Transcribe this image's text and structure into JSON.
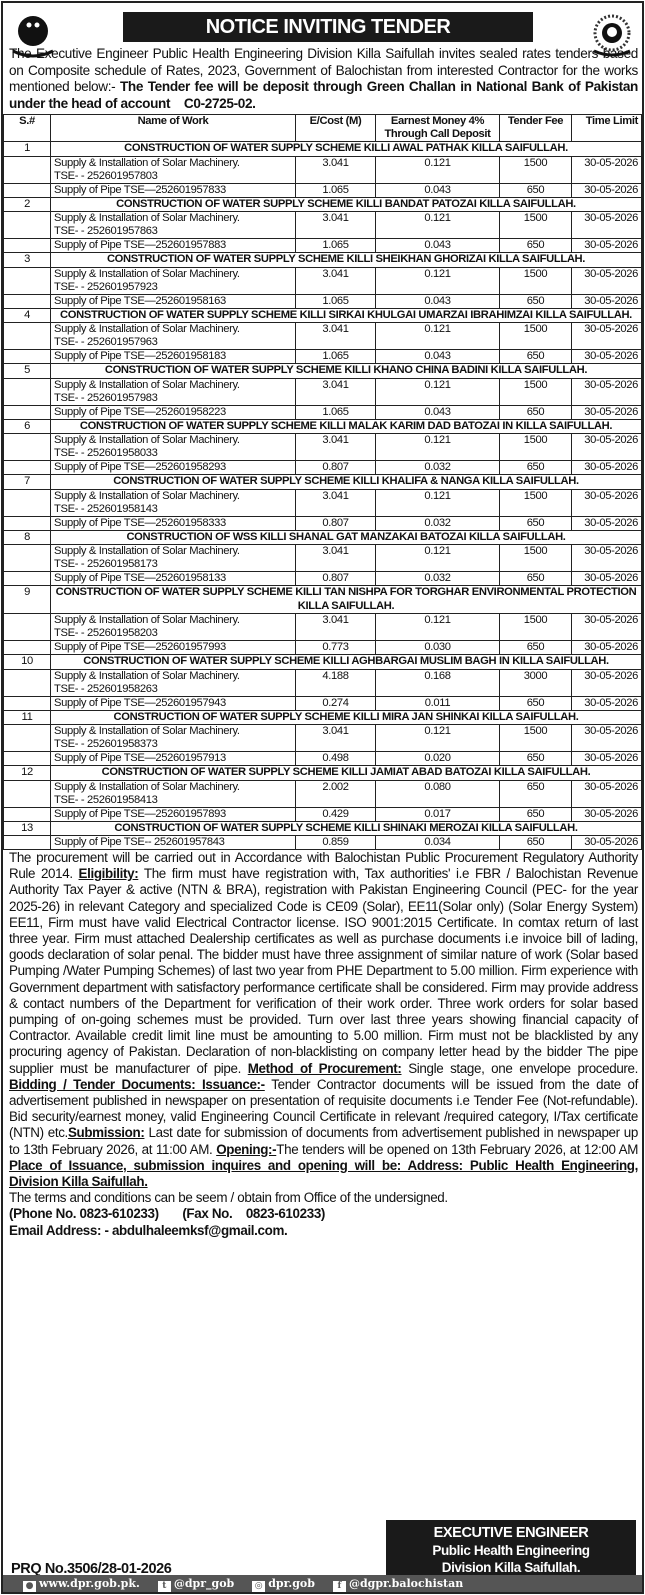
{
  "title": "NOTICE INVITING TENDER",
  "intro": [
    {
      "text": "The Executive Engineer Public Health Engineering Division Killa Saifullah invites sealed rates tenders based on Composite schedule of Rates, 2023, Government of Balochistan from interested Contractor for the works mentioned below:- ",
      "style": "n"
    },
    {
      "text": "The Tender fee will be deposit through Green Challan in National Bank of Pakistan under the head of account    C0-2725-02.",
      "style": "b"
    }
  ],
  "table": {
    "headers": [
      "S.#",
      "Name of Work",
      "E/Cost (M)",
      "Earnest Money 4% Through Call Deposit",
      "Tender Fee",
      "Time Limit"
    ],
    "projects": [
      {
        "sn": "1",
        "title": "CONSTRUCTION OF WATER SUPPLY SCHEME KILLI AWAL PATHAK KILLA SAIFULLAH.",
        "items": [
          {
            "name": "Supply & Installation of Solar Machinery.",
            "tse": "TSE- - 252601957803",
            "cost": "3.041",
            "em": "0.121",
            "fee": "1500",
            "time": "30-05-2026"
          },
          {
            "name": "Supply of Pipe TSE—252601957833",
            "cost": "1.065",
            "em": "0.043",
            "fee": "650",
            "time": "30-05-2026"
          }
        ]
      },
      {
        "sn": "2",
        "title": "CONSTRUCTION OF WATER SUPPLY SCHEME KILLI BANDAT PATOZAI KILLA SAIFULLAH.",
        "items": [
          {
            "name": "Supply & Installation of Solar Machinery.",
            "tse": "TSE- - 252601957863",
            "cost": "3.041",
            "em": "0.121",
            "fee": "1500",
            "time": "30-05-2026"
          },
          {
            "name": "Supply of Pipe TSE—252601957883",
            "cost": "1.065",
            "em": "0.043",
            "fee": "650",
            "time": "30-05-2026"
          }
        ]
      },
      {
        "sn": "3",
        "title": "CONSTRUCTION OF WATER SUPPLY SCHEME KILLI SHEIKHAN GHORIZAI KILLA SAIFULLAH.",
        "items": [
          {
            "name": "Supply & Installation of Solar Machinery.",
            "tse": "TSE- - 252601957923",
            "cost": "3.041",
            "em": "0.121",
            "fee": "1500",
            "time": "30-05-2026"
          },
          {
            "name": "Supply of Pipe TSE—252601958163",
            "cost": "1.065",
            "em": "0.043",
            "fee": "650",
            "time": "30-05-2026"
          }
        ]
      },
      {
        "sn": "4",
        "title": "CONSTRUCTION OF WATER SUPPLY SCHEME KILLI SIRKAI KHULGAI UMARZAI IBRAHIMZAI KILLA SAIFULLAH.",
        "items": [
          {
            "name": "Supply & Installation of Solar Machinery.",
            "tse": "TSE- - 252601957963",
            "cost": "3.041",
            "em": "0.121",
            "fee": "1500",
            "time": "30-05-2026"
          },
          {
            "name": "Supply of Pipe TSE—252601958183",
            "cost": "1.065",
            "em": "0.043",
            "fee": "650",
            "time": "30-05-2026"
          }
        ]
      },
      {
        "sn": "5",
        "title": "CONSTRUCTION OF WATER SUPPLY SCHEME KILLI KHANO CHINA BADINI KILLA SAIFULLAH.",
        "items": [
          {
            "name": "Supply & Installation of Solar Machinery.",
            "tse": "TSE- - 252601957983",
            "cost": "3.041",
            "em": "0.121",
            "fee": "1500",
            "time": "30-05-2026"
          },
          {
            "name": "Supply of Pipe TSE—252601958223",
            "cost": "1.065",
            "em": "0.043",
            "fee": "650",
            "time": "30-05-2026"
          }
        ]
      },
      {
        "sn": "6",
        "title": "CONSTRUCTION OF WATER SUPPLY SCHEME KILLI MALAK KARIM DAD BATOZAI IN KILLA SAIFULLAH.",
        "items": [
          {
            "name": "Supply & Installation of Solar Machinery.",
            "tse": "TSE- - 252601958033",
            "cost": "3.041",
            "em": "0.121",
            "fee": "1500",
            "time": "30-05-2026"
          },
          {
            "name": "Supply of Pipe TSE—252601958293",
            "cost": "0.807",
            "em": "0.032",
            "fee": "650",
            "time": "30-05-2026"
          }
        ]
      },
      {
        "sn": "7",
        "title": "CONSTRUCTION OF WATER SUPPLY SCHEME KILLI KHALIFA & NANGA KILLA SAIFULLAH.",
        "items": [
          {
            "name": "Supply & Installation of Solar Machinery.",
            "tse": "TSE- - 252601958143",
            "cost": "3.041",
            "em": "0.121",
            "fee": "1500",
            "time": "30-05-2026"
          },
          {
            "name": "Supply of Pipe TSE—252601958333",
            "cost": "0.807",
            "em": "0.032",
            "fee": "650",
            "time": "30-05-2026"
          }
        ]
      },
      {
        "sn": "8",
        "title": "CONSTRUCTION OF WSS KILLI SHANAL GAT MANZAKAI BATOZAI KILLA SAIFULLAH.",
        "items": [
          {
            "name": "Supply & Installation of Solar Machinery.",
            "tse": "TSE- - 252601958173",
            "cost": "3.041",
            "em": "0.121",
            "fee": "1500",
            "time": "30-05-2026"
          },
          {
            "name": "Supply of Pipe TSE—252601958133",
            "cost": "0.807",
            "em": "0.032",
            "fee": "650",
            "time": "30-05-2026"
          }
        ]
      },
      {
        "sn": "9",
        "title": "CONSTRUCTION OF WATER SUPPLY SCHEME KILLI TAN NISHPA FOR TORGHAR ENVIRONMENTAL PROTECTION KILLA SAIFULLAH.",
        "items": [
          {
            "name": "Supply & Installation of Solar Machinery.",
            "tse": "TSE- - 252601958203",
            "cost": "3.041",
            "em": "0.121",
            "fee": "1500",
            "time": "30-05-2026"
          },
          {
            "name": "Supply of Pipe TSE—252601957993",
            "cost": "0.773",
            "em": "0.030",
            "fee": "650",
            "time": "30-05-2026"
          }
        ]
      },
      {
        "sn": "10",
        "title": "CONSTRUCTION OF WATER SUPPLY SCHEME KILLI AGHBARGAI MUSLIM BAGH IN KILLA SAIFULLAH.",
        "items": [
          {
            "name": "Supply & Installation of Solar Machinery.",
            "tse": "TSE- - 252601958263",
            "cost": "4.188",
            "em": "0.168",
            "fee": "3000",
            "time": "30-05-2026"
          },
          {
            "name": "Supply of Pipe TSE—252601957943",
            "cost": "0.274",
            "em": "0.011",
            "fee": "650",
            "time": "30-05-2026"
          }
        ]
      },
      {
        "sn": "11",
        "title": "CONSTRUCTION OF WATER SUPPLY SCHEME KILLI MIRA JAN SHINKAI KILLA SAIFULLAH.",
        "items": [
          {
            "name": "Supply & Installation of Solar Machinery.",
            "tse": "TSE- - 252601958373",
            "cost": "3.041",
            "em": "0.121",
            "fee": "1500",
            "time": "30-05-2026"
          },
          {
            "name": "Supply of Pipe TSE—252601957913",
            "cost": "0.498",
            "em": "0.020",
            "fee": "650",
            "time": "30-05-2026"
          }
        ]
      },
      {
        "sn": "12",
        "title": "CONSTRUCTION OF WATER SUPPLY SCHEME KILLI JAMIAT ABAD BATOZAI KILLA SAIFULLAH.",
        "items": [
          {
            "name": "Supply & Installation of Solar Machinery.",
            "tse": "TSE- - 252601958413",
            "cost": "2.002",
            "em": "0.080",
            "fee": "650",
            "time": "30-05-2026"
          },
          {
            "name": "Supply of Pipe TSE—252601957893",
            "cost": "0.429",
            "em": "0.017",
            "fee": "650",
            "time": "30-05-2026"
          }
        ]
      },
      {
        "sn": "13",
        "title": "CONSTRUCTION OF WATER SUPPLY SCHEME KILLI SHINAKI MEROZAI KILLA SAIFULLAH.",
        "items": [
          {
            "name": "Supply of Pipe TSE-- 252601957843",
            "cost": "0.859",
            "em": "0.034",
            "fee": "650",
            "time": "30-05-2026"
          }
        ]
      }
    ]
  },
  "conditions": [
    {
      "text": "The procurement will be carried out in Accordance with Balochistan Public Procurement Regulatory Authority Rule 2014. ",
      "style": "n"
    },
    {
      "text": "Eligibility:",
      "style": "u"
    },
    {
      "text": " The firm must have registration with, Tax authorities' i.e  FBR / Balochistan Revenue Authority Tax Payer & active (NTN & BRA), registration with Pakistan Engineering Council (PEC- for the year 2025-26) in relevant Category and specialized Code is CE09 (Solar), EE11(Solar only) (Solar Energy System) EE11, Firm must have valid Electrical Contractor license.  ISO 9001:2015 Certificate. In comtax return of last three year. Firm must attached Dealership certificates as well as purchase documents i.e invoice bill of lading, goods declaration of solar penal. The bidder must have three assignment of similar nature of work (Solar based Pumping /Water Pumping Schemes) of last two year from PHE Department to 5.00 million. Firm experience with Government department with satisfactory performance certificate shall be considered.  Firm may provide address & contact numbers of the Department for verification of their work order. Three work orders for solar based pumping of on-going schemes must be provided. Turn over last three years showing financial capacity of Contractor. Available credit limit line must be amounting to 5.00 million. Firm must not be blacklisted by any procuring agency of Pakistan. Declaration of non-blacklisting on company letter head by the bidder The pipe supplier must be manufacturer of pipe. ",
      "style": "n"
    },
    {
      "text": "Method of Procurement:",
      "style": "u"
    },
    {
      "text": "  Single stage, one envelope procedure. ",
      "style": "n"
    },
    {
      "text": "Bidding / Tender Documents: Issuance:-",
      "style": "u"
    },
    {
      "text": " Tender Contractor documents will be issued from the date of advertisement published in newspaper on presentation of requisite documents i.e Tender Fee (Not-refundable). Bid security/earnest money, valid Engineering Council Certificate in relevant /required category, I/Tax certificate (NTN) etc.",
      "style": "n"
    },
    {
      "text": "Submission:",
      "style": "u"
    },
    {
      "text": " Last date for submission of documents from advertisement published in newspaper up to 13th February 2026, at 11:00 AM. ",
      "style": "n"
    },
    {
      "text": "Opening:-",
      "style": "u"
    },
    {
      "text": "The tenders will be opened on 13th February 2026, at 12:00 AM ",
      "style": "n"
    },
    {
      "text": " Place of Issuance, submission inquires and opening will be: Address: Public Health Engineering, Division Killa Saifullah.",
      "style": "u"
    }
  ],
  "terms": "The terms and conditions can be seem / obtain from Office of the undersigned.",
  "phone": "(Phone No. 0823-610233)",
  "fax": "(Fax No.    0823-610233)",
  "email": "Email Address: - abdulhaleemksf@gmail.com.",
  "signature": [
    "EXECUTIVE ENGINEER",
    "Public Health Engineering",
    "Division Killa Saifullah."
  ],
  "prq": "PRQ No.3506/28-01-2026",
  "footer": [
    {
      "icon": "globe-icon",
      "glyph": "●",
      "text": "www.dpr.gob.pk."
    },
    {
      "icon": "twitter-icon",
      "glyph": "t",
      "text": "@dpr_gob"
    },
    {
      "icon": "instagram-icon",
      "glyph": "◎",
      "text": "dpr.gob"
    },
    {
      "icon": "facebook-icon",
      "glyph": "f",
      "text": "@dgpr.balochistan"
    }
  ]
}
